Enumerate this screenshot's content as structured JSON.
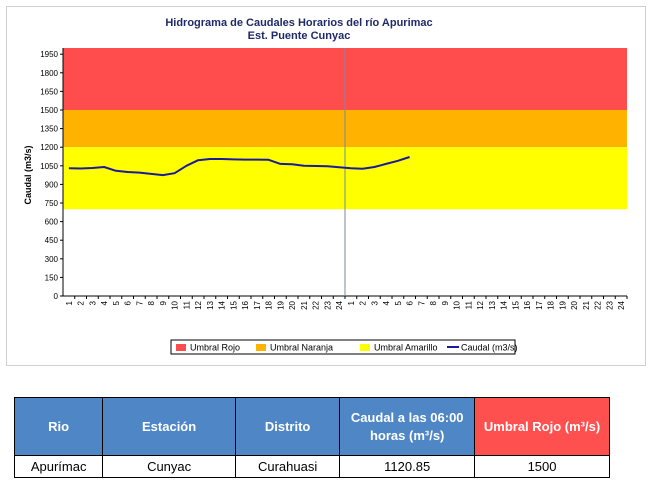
{
  "chart_data": {
    "type": "line",
    "title": "Hidrograma de Caudales Horarios del río Apurimac",
    "subtitle": "Est. Puente Cunyac",
    "ylabel": "Caudal  (m3/s)",
    "ylim": [
      0,
      2000
    ],
    "y_ticks": [
      0,
      150,
      300,
      450,
      600,
      750,
      900,
      1050,
      1200,
      1350,
      1500,
      1650,
      1800,
      1950
    ],
    "x_ticks": [
      "1",
      "2",
      "3",
      "4",
      "5",
      "6",
      "7",
      "8",
      "9",
      "10",
      "11",
      "12",
      "13",
      "14",
      "15",
      "16",
      "17",
      "18",
      "19",
      "20",
      "21",
      "22",
      "23",
      "24",
      "1",
      "2",
      "3",
      "4",
      "5",
      "6",
      "7",
      "8",
      "9",
      "10",
      "11",
      "12",
      "13",
      "14",
      "15",
      "16",
      "17",
      "18",
      "19",
      "20",
      "21",
      "22",
      "23",
      "24"
    ],
    "bands": [
      {
        "name": "Umbral Rojo",
        "from": 1500,
        "to": 2000,
        "color": "#ff4d4d"
      },
      {
        "name": "Umbral Naranja",
        "from": 1200,
        "to": 1500,
        "color": "#ffb300"
      },
      {
        "name": "Umbral Amarillo",
        "from": 700,
        "to": 1200,
        "color": "#ffff00"
      }
    ],
    "series": [
      {
        "name": "Caudal (m3/s)",
        "color": "#1a1a9c",
        "x": [
          1,
          2,
          3,
          4,
          5,
          6,
          7,
          8,
          9,
          10,
          11,
          12,
          13,
          14,
          15,
          16,
          17,
          18,
          19,
          20,
          21,
          22,
          23,
          24,
          25,
          26,
          27,
          28,
          29,
          30
        ],
        "values": [
          1030,
          1028,
          1032,
          1040,
          1010,
          1000,
          995,
          985,
          975,
          990,
          1050,
          1095,
          1105,
          1105,
          1102,
          1100,
          1100,
          1098,
          1065,
          1062,
          1050,
          1048,
          1046,
          1038,
          1030,
          1026,
          1040,
          1065,
          1090,
          1120.85
        ]
      }
    ],
    "legend_position": "bottom",
    "grid": false
  },
  "table": {
    "headers": [
      "Rio",
      "Estación",
      "Distrito",
      "Caudal a las 06:00 horas (m³/s)",
      "Umbral Rojo (m³/s)"
    ],
    "row": [
      "Apurímac",
      "Cunyac",
      "Curahuasi",
      "1120.85",
      "1500"
    ]
  }
}
